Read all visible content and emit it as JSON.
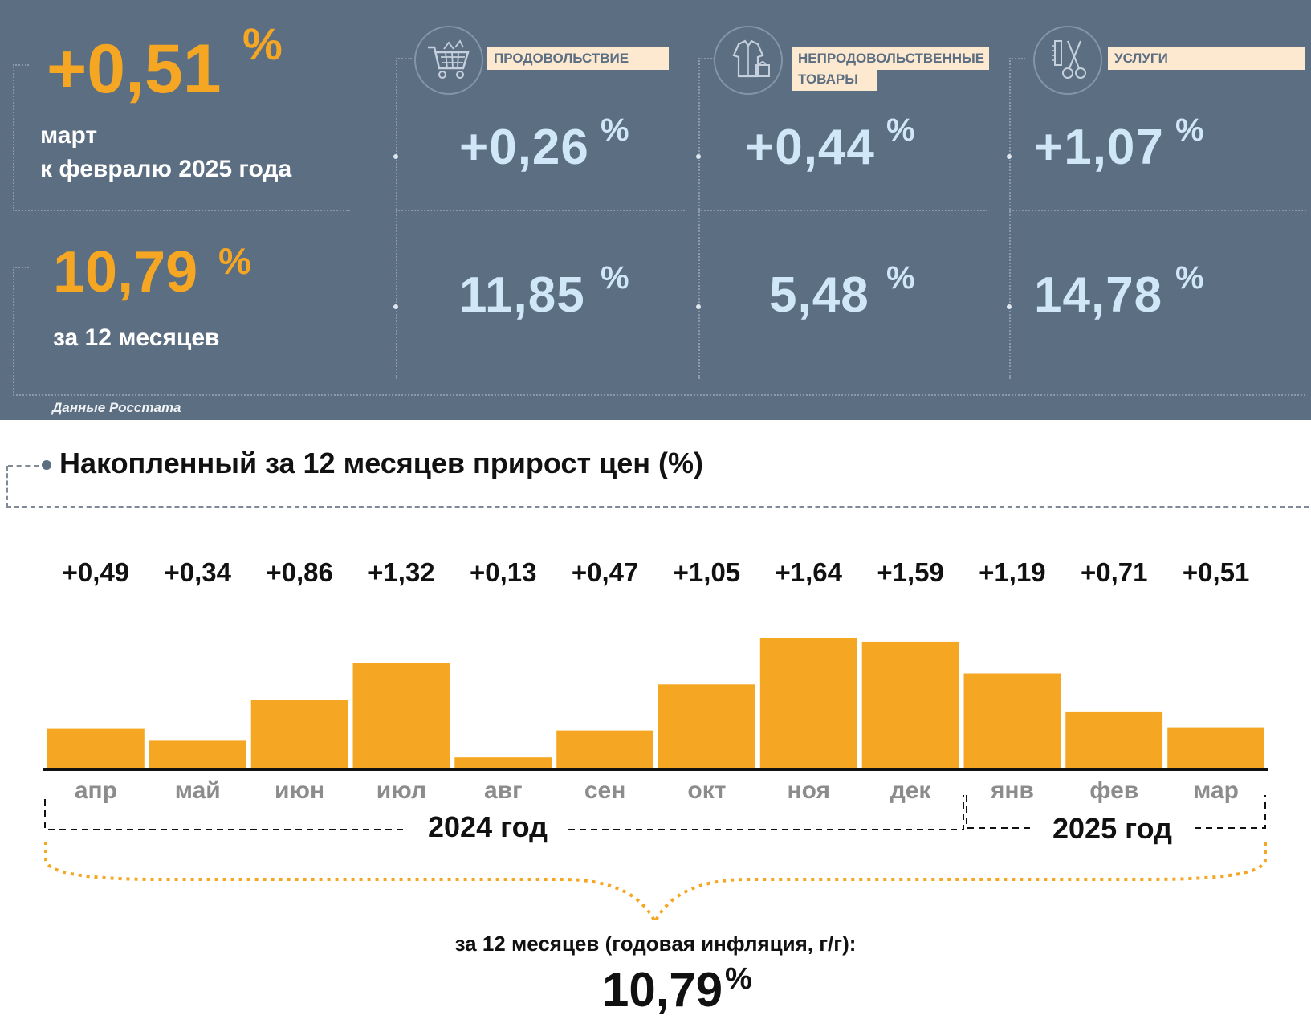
{
  "summary": {
    "monthly_value": "+0,51",
    "monthly_pct": "%",
    "monthly_caption_line1": "март",
    "monthly_caption_line2": "к февралю 2025 года",
    "annual_value": "10,79",
    "annual_pct": "%",
    "annual_caption": "за 12 месяцев",
    "source": "Данные Росстата"
  },
  "categories": [
    {
      "icon": "shopping-cart-icon",
      "label": "ПРОДОВОЛЬСТВИЕ",
      "label2": "",
      "monthly": "+0,26",
      "annual": "11,85",
      "pct": "%"
    },
    {
      "icon": "clothes-icon",
      "label": "НЕПРОДОВОЛЬСТВЕННЫЕ",
      "label2": "ТОВАРЫ",
      "monthly": "+0,44",
      "annual": "5,48",
      "pct": "%"
    },
    {
      "icon": "scissors-comb-icon",
      "label": "УСЛУГИ",
      "label2": "",
      "monthly": "+1,07",
      "annual": "14,78",
      "pct": "%"
    }
  ],
  "section_title": "Накопленный за 12 месяцев прирост цен (%)",
  "chart_data": {
    "type": "bar",
    "title": "Накопленный за 12 месяцев прирост цен (%)",
    "categories": [
      "апр",
      "май",
      "июн",
      "июл",
      "авг",
      "сен",
      "окт",
      "ноя",
      "дек",
      "янв",
      "фев",
      "мар"
    ],
    "values": [
      0.49,
      0.34,
      0.86,
      1.32,
      0.13,
      0.47,
      1.05,
      1.64,
      1.59,
      1.19,
      0.71,
      0.51
    ],
    "value_labels": [
      "+0,49",
      "+0,34",
      "+0,86",
      "+1,32",
      "+0,13",
      "+0,47",
      "+1,05",
      "+1,64",
      "+1,59",
      "+1,19",
      "+0,71",
      "+0,51"
    ],
    "year_groups": [
      {
        "label": "2024 год",
        "months": 9
      },
      {
        "label": "2025 год",
        "months": 3
      }
    ],
    "ylim": [
      0,
      1.64
    ],
    "bar_color": "#f5a623"
  },
  "total": {
    "caption": "за 12 месяцев (годовая инфляция, г/г):",
    "value": "10,79",
    "pct": "%"
  }
}
